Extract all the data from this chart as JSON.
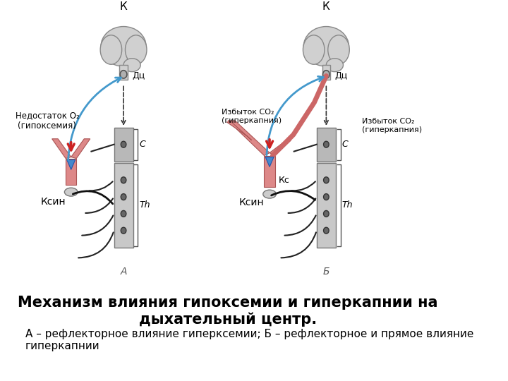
{
  "title_bold": "Механизм влияния гипоксемии и гиперкапнии на\nдыхательный центр.",
  "subtitle": "А – рефлекторное влияние гиперксемии; Б – рефлекторное и прямое влияние\nгиперкапнии",
  "background_color": "#ffffff",
  "title_fontsize": 15,
  "subtitle_fontsize": 11,
  "title_color": "#000000",
  "subtitle_color": "#000000",
  "label_A": "А",
  "label_B": "Б",
  "label_K_left": "К",
  "label_K_right": "К",
  "label_Dc_left": "Дц",
  "label_Dc_right": "Дц",
  "label_C_left": "С",
  "label_C_right": "С",
  "label_Th_left": "Th",
  "label_Th_right": "Th",
  "label_Ksin_left": "Ксин",
  "label_Ksin_right": "Ксин",
  "label_Kc_right": "Кс",
  "label_hypoxemia": "Недостаток О₂\n(гипоксемия)",
  "label_hypercapnia_left": "Избыток СО₂\n(гиперкапния)",
  "label_hypercapnia_right": "Избыток СО₂\n(гиперкапния)",
  "spine_color": "#aaaaaa",
  "red_arrow_color": "#cc2222",
  "blue_arrow_color": "#4499cc",
  "pink_vessel_color": "#dd8888",
  "dark_nerve_color": "#222222",
  "node_color": "#555555"
}
